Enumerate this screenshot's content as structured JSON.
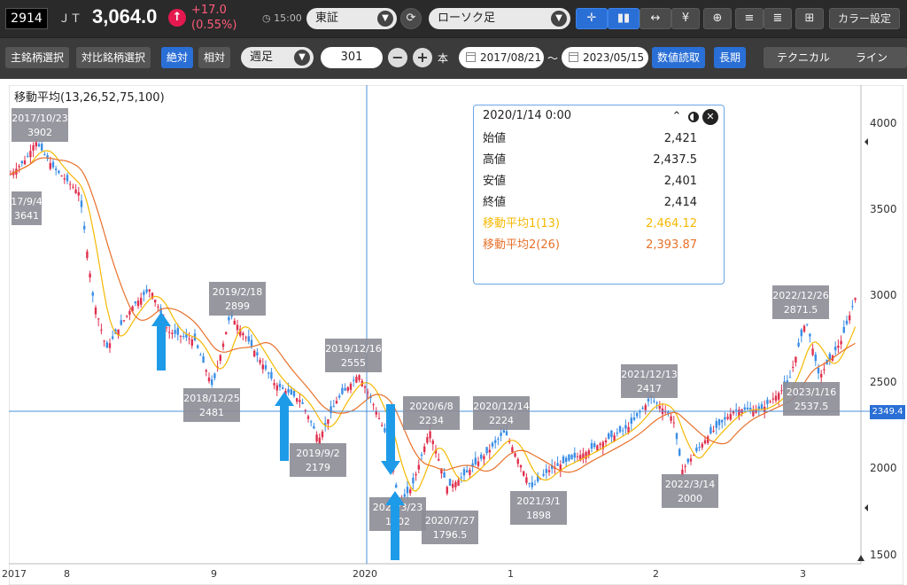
{
  "header": {
    "code": "2914",
    "name": "ＪＴ",
    "price": "3,064.0",
    "change": "+17.0",
    "change_pct": "(0.55%)",
    "time": "15:00",
    "market": "東証",
    "chart_type": "ローソク足",
    "color_setting": "カラー設定"
  },
  "toolbar": {
    "main_stock": "主銘柄選択",
    "compare_stock": "対比銘柄選択",
    "absolute": "絶対",
    "relative": "相対",
    "period": "週足",
    "count": "301",
    "unit": "本",
    "date_from": "2017/08/21",
    "tilde": "～",
    "date_to": "2023/05/15",
    "read_values": "数値読取",
    "long_term": "長期",
    "technical": "テクニカル",
    "line": "ライン"
  },
  "chart": {
    "indicator_title": "移動平均(13,26,52,75,100)",
    "current_price_tag": "2349.4",
    "y_ticks": [
      "4000",
      "3500",
      "3000",
      "2500",
      "2000",
      "1500"
    ],
    "x_ticks": [
      "2017",
      "8",
      "9",
      "2020",
      "1",
      "2",
      "3"
    ],
    "tooltip": {
      "date": "2020/1/14 0:00",
      "rows": [
        {
          "label": "始値",
          "value": "2,421",
          "color": "#222222"
        },
        {
          "label": "高値",
          "value": "2,437.5",
          "color": "#222222"
        },
        {
          "label": "安値",
          "value": "2,401",
          "color": "#222222"
        },
        {
          "label": "終値",
          "value": "2,414",
          "color": "#222222"
        },
        {
          "label": "移動平均1(13)",
          "value": "2,464.12",
          "color": "#f5b800"
        },
        {
          "label": "移動平均2(26)",
          "value": "2,393.87",
          "color": "#e8702a"
        }
      ]
    },
    "annotations": [
      {
        "date": "2017/10/23",
        "value": "3902"
      },
      {
        "date": "17/9/4",
        "value": "3641"
      },
      {
        "date": "2019/2/18",
        "value": "2899"
      },
      {
        "date": "2018/12/25",
        "value": "2481"
      },
      {
        "date": "2019/12/16",
        "value": "2555"
      },
      {
        "date": "2019/9/2",
        "value": "2179"
      },
      {
        "date": "2020/6/8",
        "value": "2234"
      },
      {
        "date": "2020/3/23",
        "value": "1702"
      },
      {
        "date": "2020/7/27",
        "value": "1796.5"
      },
      {
        "date": "2020/12/14",
        "value": "2224"
      },
      {
        "date": "2021/3/1",
        "value": "1898"
      },
      {
        "date": "2021/12/13",
        "value": "2417"
      },
      {
        "date": "2022/3/14",
        "value": "2000"
      },
      {
        "date": "2022/12/26",
        "value": "2871.5"
      },
      {
        "date": "2023/1/16",
        "value": "2537.5"
      }
    ],
    "colors": {
      "up": "#e0304e",
      "down": "#3a8ee6",
      "ma13": "#f5b800",
      "ma26": "#e8702a",
      "crosshair": "#4a90d9",
      "arrow": "#1e9be8"
    }
  }
}
